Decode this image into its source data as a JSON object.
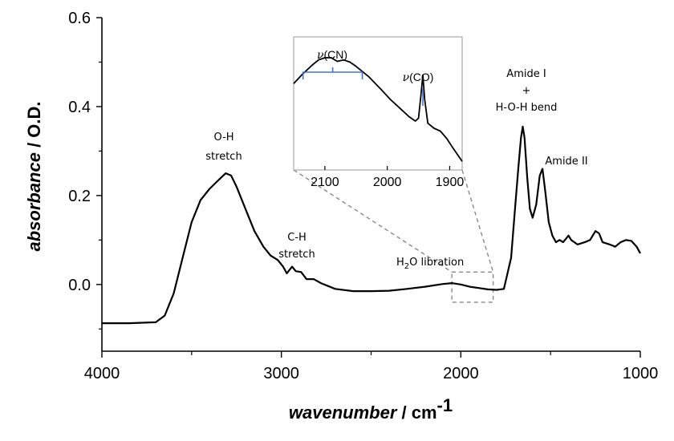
{
  "chart_data": {
    "type": "line",
    "title": "",
    "xlabel_italic": "wavenumber",
    "xlabel_unit": " / cm",
    "xlabel_sup": "-1",
    "ylabel_italic": "absorbance",
    "ylabel_unit": " / O.D.",
    "xlim": [
      4000,
      1000
    ],
    "ylim": [
      -0.15,
      0.6
    ],
    "xticks": [
      4000,
      3000,
      2000,
      1000
    ],
    "xtick_labels": [
      "4000",
      "3000",
      "2000",
      "1000"
    ],
    "yticks": [
      0.0,
      0.2,
      0.4,
      0.6
    ],
    "ytick_labels": [
      "0.0",
      "0.2",
      "0.4",
      "0.6"
    ],
    "series": [
      {
        "name": "absorbance spectrum",
        "color": "#000000",
        "points": [
          [
            4000,
            -0.087
          ],
          [
            3850,
            -0.087
          ],
          [
            3700,
            -0.085
          ],
          [
            3650,
            -0.07
          ],
          [
            3600,
            -0.02
          ],
          [
            3550,
            0.06
          ],
          [
            3500,
            0.14
          ],
          [
            3450,
            0.19
          ],
          [
            3400,
            0.215
          ],
          [
            3350,
            0.235
          ],
          [
            3310,
            0.25
          ],
          [
            3280,
            0.245
          ],
          [
            3250,
            0.22
          ],
          [
            3200,
            0.17
          ],
          [
            3150,
            0.12
          ],
          [
            3100,
            0.085
          ],
          [
            3060,
            0.065
          ],
          [
            3020,
            0.055
          ],
          [
            2990,
            0.04
          ],
          [
            2970,
            0.025
          ],
          [
            2940,
            0.04
          ],
          [
            2920,
            0.03
          ],
          [
            2890,
            0.028
          ],
          [
            2860,
            0.012
          ],
          [
            2820,
            0.012
          ],
          [
            2780,
            0.003
          ],
          [
            2700,
            -0.01
          ],
          [
            2600,
            -0.015
          ],
          [
            2500,
            -0.015
          ],
          [
            2400,
            -0.014
          ],
          [
            2300,
            -0.01
          ],
          [
            2200,
            -0.005
          ],
          [
            2100,
            0.001
          ],
          [
            2050,
            0.003
          ],
          [
            2000,
            0.0
          ],
          [
            1950,
            -0.005
          ],
          [
            1900,
            -0.008
          ],
          [
            1850,
            -0.011
          ],
          [
            1800,
            -0.012
          ],
          [
            1760,
            -0.01
          ],
          [
            1720,
            0.06
          ],
          [
            1700,
            0.16
          ],
          [
            1680,
            0.26
          ],
          [
            1665,
            0.33
          ],
          [
            1655,
            0.355
          ],
          [
            1645,
            0.33
          ],
          [
            1630,
            0.24
          ],
          [
            1615,
            0.17
          ],
          [
            1600,
            0.15
          ],
          [
            1580,
            0.18
          ],
          [
            1560,
            0.245
          ],
          [
            1545,
            0.26
          ],
          [
            1530,
            0.21
          ],
          [
            1510,
            0.14
          ],
          [
            1490,
            0.11
          ],
          [
            1470,
            0.095
          ],
          [
            1450,
            0.1
          ],
          [
            1430,
            0.095
          ],
          [
            1410,
            0.105
          ],
          [
            1400,
            0.11
          ],
          [
            1385,
            0.1
          ],
          [
            1350,
            0.09
          ],
          [
            1310,
            0.095
          ],
          [
            1280,
            0.1
          ],
          [
            1250,
            0.12
          ],
          [
            1230,
            0.115
          ],
          [
            1210,
            0.095
          ],
          [
            1170,
            0.09
          ],
          [
            1140,
            0.085
          ],
          [
            1110,
            0.095
          ],
          [
            1080,
            0.1
          ],
          [
            1050,
            0.098
          ],
          [
            1020,
            0.085
          ],
          [
            1000,
            0.07
          ]
        ]
      }
    ],
    "annotations": [
      {
        "id": "oh",
        "lines": [
          "O-H",
          "stretch"
        ]
      },
      {
        "id": "ch",
        "lines": [
          "C-H",
          "stretch"
        ]
      },
      {
        "id": "h2o",
        "main": "H",
        "sub": "2",
        "rest": "O libration"
      },
      {
        "id": "amide1",
        "lines": [
          "Amide I",
          "+",
          "H-O-H bend"
        ]
      },
      {
        "id": "amide2",
        "lines": [
          "Amide II"
        ]
      }
    ],
    "inset": {
      "xlim": [
        2150,
        1880
      ],
      "xticks": [
        2100,
        2000,
        1900
      ],
      "xtick_labels": [
        "2100",
        "2000",
        "1900"
      ],
      "cn_label_greek": "ν",
      "cn_label_rest": "(CN)",
      "co_label_greek": "ν",
      "co_label_rest": "(CO)",
      "zoom_box_x": [
        2050,
        1820
      ],
      "zoom_box_y": [
        -0.04,
        0.028
      ],
      "points": [
        [
          2150,
          0.0
        ],
        [
          2135,
          0.0014
        ],
        [
          2120,
          0.0026
        ],
        [
          2110,
          0.0033
        ],
        [
          2100,
          0.0036
        ],
        [
          2090,
          0.0036
        ],
        [
          2080,
          0.0031
        ],
        [
          2070,
          0.0033
        ],
        [
          2060,
          0.003
        ],
        [
          2050,
          0.0024
        ],
        [
          2030,
          0.001
        ],
        [
          2010,
          -0.0008
        ],
        [
          1995,
          -0.0022
        ],
        [
          1980,
          -0.0034
        ],
        [
          1965,
          -0.0046
        ],
        [
          1955,
          -0.0052
        ],
        [
          1950,
          -0.0048
        ],
        [
          1946,
          -0.0015
        ],
        [
          1943,
          0.0012
        ],
        [
          1940,
          -0.0022
        ],
        [
          1935,
          -0.0055
        ],
        [
          1925,
          -0.0062
        ],
        [
          1915,
          -0.0066
        ],
        [
          1905,
          -0.0076
        ],
        [
          1895,
          -0.0089
        ],
        [
          1880,
          -0.0108
        ]
      ],
      "ylim": [
        -0.012,
        0.0065
      ]
    },
    "colors": {
      "line": "#000000",
      "axis": "#000000",
      "inset_border": "#aaaaaa",
      "zoom": "#888888",
      "bracket": "#4472c4"
    }
  }
}
